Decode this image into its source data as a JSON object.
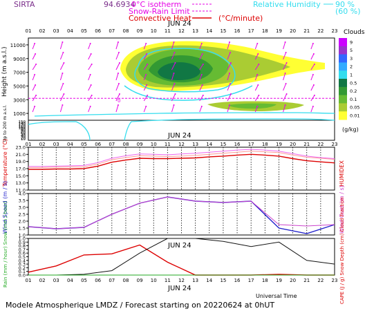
{
  "header": {
    "station": "SIRTA",
    "coord": "94.6934",
    "legend_iso": "0°C isotherm",
    "legend_snow": "Snow-Rain Limit",
    "legend_conv": "Convective Heat",
    "legend_conv_unit": "(°C/minute)",
    "rh_label": "Relative Humidity",
    "rh_90": "90 %",
    "rh_60": "(60 %)",
    "colors": {
      "magenta": "#e600e6",
      "cyan": "#33ddee",
      "red": "#dd0000"
    }
  },
  "date_label": "JUN 24",
  "hours": [
    "01",
    "02",
    "03",
    "04",
    "05",
    "06",
    "07",
    "08",
    "09",
    "10",
    "11",
    "12",
    "13",
    "14",
    "15",
    "16",
    "17",
    "18",
    "19",
    "20",
    "21",
    "22",
    "23"
  ],
  "footer": {
    "universal_time": "Universal Time",
    "model": "Modele Atmospherique LMDZ / Forecast starting on 20220624 at 0hUT"
  },
  "chart_data": [
    {
      "type": "heatmap",
      "name": "clouds",
      "ylabel": "Height (m a.s.l.)",
      "yticks_upper": [
        "1000",
        "3000",
        "5000",
        "7000",
        "9000",
        "11000"
      ],
      "ylabel_lower": "Up to 200 m a.s.l.",
      "yticks_lower": [
        "10",
        "20",
        "30",
        "40",
        "50",
        "60",
        "70",
        "80",
        "90",
        "100",
        "110",
        "120",
        "130",
        "140",
        "150"
      ],
      "colorbar_title": "Clouds",
      "colorbar_unit": "(g/kg)",
      "colorbar_labels": [
        "9",
        "5",
        "3",
        "2",
        "1",
        "0.5",
        "0.2",
        "0.1",
        "0.05",
        "0.01"
      ],
      "colorbar_colors": [
        "#cc00ff",
        "#9933cc",
        "#3366ff",
        "#33aaff",
        "#33ddee",
        "#117744",
        "#339933",
        "#66bb33",
        "#aacc33",
        "#ffff33"
      ],
      "isotherm_height_m": 3200,
      "isotherm_label": "0"
    },
    {
      "type": "line",
      "name": "temperature",
      "ylabel": "Temperature (°C)",
      "ylabel_right": "HUMIDEX",
      "yticks": [
        "11.0",
        "13.0",
        "15.0",
        "17.0",
        "19.0",
        "21.0",
        "23.0"
      ],
      "ylim": [
        11,
        23
      ],
      "x": [
        1,
        2,
        3,
        4,
        5,
        6,
        7,
        8,
        9,
        10,
        11,
        12,
        13,
        14,
        15,
        16,
        17,
        18,
        19,
        20,
        21,
        22,
        23
      ],
      "series": [
        {
          "color": "#dd0000",
          "values": [
            16.8,
            16.8,
            16.9,
            16.9,
            17.0,
            17.7,
            18.8,
            19.4,
            19.9,
            19.8,
            19.8,
            19.9,
            20.0,
            20.3,
            20.5,
            20.8,
            21.0,
            20.8,
            20.5,
            19.8,
            19.2,
            18.9,
            18.6
          ]
        },
        {
          "color": "#ff9999",
          "values": [
            17.3,
            17.3,
            17.4,
            17.5,
            17.5,
            18.3,
            19.5,
            20.1,
            20.6,
            20.5,
            20.4,
            20.5,
            20.7,
            21.0,
            21.3,
            21.6,
            21.9,
            21.7,
            21.5,
            20.8,
            20.2,
            19.9,
            19.6
          ]
        },
        {
          "color": "#ee66ee",
          "values": [
            17.6,
            17.6,
            17.7,
            17.8,
            17.9,
            18.7,
            19.9,
            20.6,
            21.1,
            21.0,
            20.9,
            21.1,
            21.3,
            21.6,
            21.9,
            22.2,
            22.4,
            22.2,
            21.9,
            21.2,
            20.5,
            20.1,
            19.8
          ]
        }
      ]
    },
    {
      "type": "line",
      "name": "wind",
      "ylabel": "Wind Speed (m / s)",
      "ylabel_right": "Wind Gust (m / s)",
      "yticks": [
        "1.0",
        "1.5",
        "2.0",
        "2.5",
        "3.0",
        "3.5",
        "4.0"
      ],
      "ylim": [
        1,
        4
      ],
      "x": [
        1,
        3,
        5,
        7,
        9,
        11,
        13,
        15,
        17,
        19,
        21,
        23
      ],
      "series": [
        {
          "color": "#2222cc",
          "values": [
            1.6,
            1.45,
            1.55,
            2.5,
            3.3,
            3.75,
            3.45,
            3.35,
            3.45,
            1.5,
            1.1,
            1.75
          ]
        },
        {
          "color": "#cc44cc",
          "values": [
            1.6,
            1.45,
            1.55,
            2.5,
            3.3,
            3.75,
            3.45,
            3.35,
            3.45,
            1.75,
            1.65,
            1.75
          ]
        }
      ]
    },
    {
      "type": "line",
      "name": "precip",
      "ylabel": "Rain (mm / hour) Snow (mm / hour)",
      "ylabel_right": "CAPE (J / g) Snow Depth (cm) Cloud Fraction",
      "yticks": [
        "0.0",
        "0.1",
        "0.2",
        "0.3",
        "0.4",
        "0.5",
        "0.6",
        "0.7",
        "0.8",
        "0.9",
        "1.0"
      ],
      "ylim": [
        0,
        1
      ],
      "x": [
        1,
        3,
        5,
        7,
        9,
        11,
        13,
        15,
        17,
        19,
        21,
        23
      ],
      "series": [
        {
          "color": "#dd0000",
          "values": [
            0.08,
            0.25,
            0.55,
            0.58,
            0.82,
            0.35,
            0.0,
            0.0,
            0.0,
            0.02,
            0.0,
            0.0
          ]
        },
        {
          "color": "#111111",
          "values": [
            0.0,
            0.0,
            0.02,
            0.12,
            0.6,
            1.0,
            1.0,
            0.92,
            0.78,
            0.9,
            0.4,
            0.3
          ]
        },
        {
          "color": "#22aa22",
          "values": [
            0.0,
            0.0,
            0.0,
            0.0,
            0.0,
            0.0,
            0.0,
            0.0,
            0.0,
            0.0,
            0.0,
            0.0
          ]
        }
      ]
    }
  ]
}
